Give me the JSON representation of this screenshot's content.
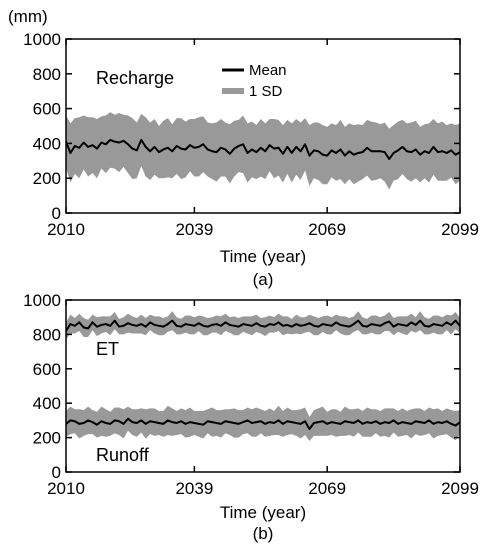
{
  "colors": {
    "band": "#999999",
    "mean": "#000000",
    "axis": "#000000"
  },
  "chart_data": [
    {
      "type": "line",
      "panel_label": "(a)",
      "unit_label": "(mm)",
      "xlabel": "Time (year)",
      "ylabel": "",
      "xlim": [
        2010,
        2099
      ],
      "ylim": [
        0,
        1000
      ],
      "xticks": [
        2010,
        2039,
        2069,
        2099
      ],
      "yticks": [
        0,
        200,
        400,
        600,
        800,
        1000
      ],
      "grid": false,
      "legend": {
        "placement": "top-center",
        "entries": [
          "Mean",
          "1 SD"
        ]
      },
      "annotations": [
        "Recharge"
      ],
      "series": [
        {
          "name": "Recharge",
          "x_start": 2010,
          "mean": [
            410,
            345,
            385,
            375,
            405,
            380,
            390,
            370,
            405,
            395,
            420,
            410,
            405,
            415,
            395,
            370,
            360,
            420,
            380,
            355,
            380,
            350,
            365,
            375,
            355,
            385,
            370,
            365,
            390,
            375,
            380,
            395,
            365,
            355,
            350,
            375,
            365,
            340,
            370,
            385,
            395,
            345,
            365,
            350,
            375,
            355,
            390,
            370,
            375,
            340,
            380,
            345,
            380,
            355,
            395,
            330,
            360,
            355,
            335,
            330,
            360,
            345,
            365,
            330,
            355,
            335,
            345,
            350,
            375,
            355,
            355,
            355,
            350,
            310,
            345,
            360,
            380,
            355,
            350,
            365,
            335,
            355,
            345,
            380,
            350,
            355,
            345,
            360,
            335,
            350
          ],
          "sd": [
            150,
            170,
            160,
            175,
            155,
            170,
            160,
            170,
            150,
            165,
            160,
            155,
            170,
            150,
            165,
            175,
            160,
            150,
            170,
            165,
            160,
            150,
            165,
            170,
            155,
            160,
            175,
            160,
            150,
            165,
            170,
            160,
            155,
            160,
            170,
            165,
            155,
            170,
            160,
            150,
            165,
            170,
            160,
            155,
            165,
            160,
            150,
            170,
            160,
            165,
            155,
            170,
            160,
            165,
            150,
            175,
            160,
            165,
            170,
            165,
            155,
            160,
            170,
            165,
            160,
            170,
            165,
            155,
            160,
            170,
            165,
            155,
            170,
            175,
            160,
            165,
            155,
            160,
            170,
            165,
            160,
            155,
            170,
            160,
            165,
            170,
            160,
            155,
            170,
            165
          ]
        }
      ]
    },
    {
      "type": "line",
      "panel_label": "(b)",
      "xlabel": "Time (year)",
      "ylabel": "",
      "xlim": [
        2010,
        2099
      ],
      "ylim": [
        0,
        1000
      ],
      "xticks": [
        2010,
        2039,
        2069,
        2099
      ],
      "yticks": [
        0,
        200,
        400,
        600,
        800,
        1000
      ],
      "grid": false,
      "annotations": [
        "ET",
        "Runoff"
      ],
      "series": [
        {
          "name": "ET",
          "x_start": 2010,
          "mean": [
            820,
            860,
            850,
            870,
            840,
            835,
            870,
            845,
            855,
            860,
            850,
            880,
            845,
            850,
            865,
            855,
            850,
            860,
            845,
            870,
            855,
            850,
            845,
            860,
            880,
            850,
            845,
            860,
            855,
            850,
            865,
            850,
            845,
            855,
            860,
            850,
            870,
            855,
            850,
            845,
            860,
            855,
            850,
            865,
            850,
            845,
            860,
            855,
            870,
            850,
            855,
            845,
            860,
            850,
            855,
            865,
            850,
            845,
            860,
            855,
            850,
            870,
            855,
            850,
            845,
            860,
            880,
            850,
            845,
            860,
            855,
            850,
            865,
            875,
            845,
            860,
            855,
            850,
            870,
            855,
            880,
            850,
            845,
            860,
            855,
            850,
            870,
            855,
            880,
            850
          ],
          "sd": [
            50,
            55,
            45,
            50,
            55,
            50,
            45,
            55,
            50,
            45,
            55,
            50,
            45,
            50,
            55,
            50,
            45,
            55,
            50,
            45,
            50,
            55,
            50,
            45,
            55,
            50,
            45,
            50,
            55,
            50,
            45,
            55,
            50,
            45,
            50,
            55,
            50,
            45,
            55,
            50,
            45,
            50,
            55,
            50,
            45,
            55,
            50,
            45,
            50,
            55,
            50,
            45,
            55,
            50,
            45,
            50,
            55,
            50,
            45,
            55,
            50,
            45,
            50,
            55,
            50,
            45,
            55,
            50,
            45,
            50,
            55,
            50,
            45,
            55,
            50,
            45,
            50,
            55,
            50,
            45,
            55,
            50,
            45,
            50,
            55,
            50,
            45,
            55,
            50,
            45
          ]
        },
        {
          "name": "Runoff",
          "x_start": 2010,
          "mean": [
            280,
            300,
            295,
            280,
            285,
            300,
            290,
            275,
            295,
            285,
            280,
            300,
            295,
            280,
            310,
            290,
            285,
            300,
            280,
            295,
            290,
            285,
            280,
            300,
            290,
            285,
            295,
            280,
            290,
            285,
            280,
            275,
            295,
            290,
            285,
            280,
            295,
            290,
            285,
            280,
            290,
            300,
            285,
            290,
            295,
            280,
            290,
            285,
            300,
            280,
            295,
            290,
            285,
            280,
            295,
            250,
            285,
            290,
            295,
            280,
            290,
            285,
            280,
            295,
            290,
            285,
            300,
            280,
            290,
            285,
            295,
            280,
            290,
            285,
            300,
            280,
            290,
            285,
            280,
            295,
            290,
            285,
            300,
            280,
            290,
            285,
            295,
            280,
            270,
            290
          ],
          "sd": [
            75,
            80,
            70,
            85,
            75,
            80,
            70,
            75,
            85,
            80,
            70,
            75,
            80,
            85,
            70,
            75,
            80,
            70,
            85,
            75,
            80,
            70,
            75,
            85,
            80,
            70,
            75,
            80,
            85,
            70,
            75,
            80,
            70,
            85,
            75,
            80,
            70,
            75,
            85,
            80,
            70,
            75,
            80,
            85,
            70,
            75,
            80,
            70,
            85,
            75,
            80,
            70,
            75,
            85,
            80,
            70,
            75,
            80,
            85,
            70,
            75,
            80,
            70,
            85,
            75,
            80,
            70,
            75,
            85,
            80,
            70,
            75,
            80,
            85,
            70,
            75,
            80,
            70,
            85,
            75,
            80,
            70,
            75,
            85,
            80,
            70,
            75,
            80,
            85,
            70
          ]
        }
      ]
    }
  ]
}
